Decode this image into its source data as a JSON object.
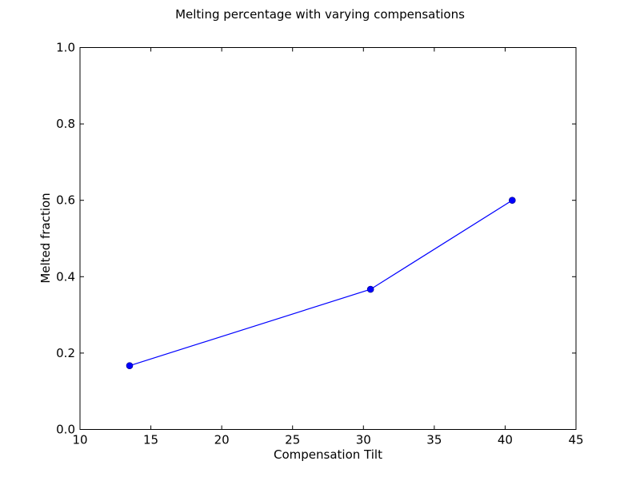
{
  "chart_data": {
    "type": "line",
    "title": "Melting percentage with varying compensations",
    "xlabel": "Compensation Tilt",
    "ylabel": "Melted fraction",
    "xlim": [
      10,
      45
    ],
    "ylim": [
      0,
      1.0
    ],
    "xticks": [
      10,
      15,
      20,
      25,
      30,
      35,
      40,
      45
    ],
    "xtick_labels": [
      "10",
      "15",
      "20",
      "25",
      "30",
      "35",
      "40",
      "45"
    ],
    "yticks": [
      0,
      0.2,
      0.4,
      0.6,
      0.8,
      1.0
    ],
    "ytick_labels": [
      "0.0",
      "0.2",
      "0.4",
      "0.6",
      "0.8",
      "1.0"
    ],
    "grid": false,
    "legend": false,
    "series": [
      {
        "color": "#0000ff",
        "marker": "circle",
        "x": [
          13.5,
          30.5,
          40.5
        ],
        "y": [
          0.167,
          0.367,
          0.6
        ]
      }
    ]
  }
}
